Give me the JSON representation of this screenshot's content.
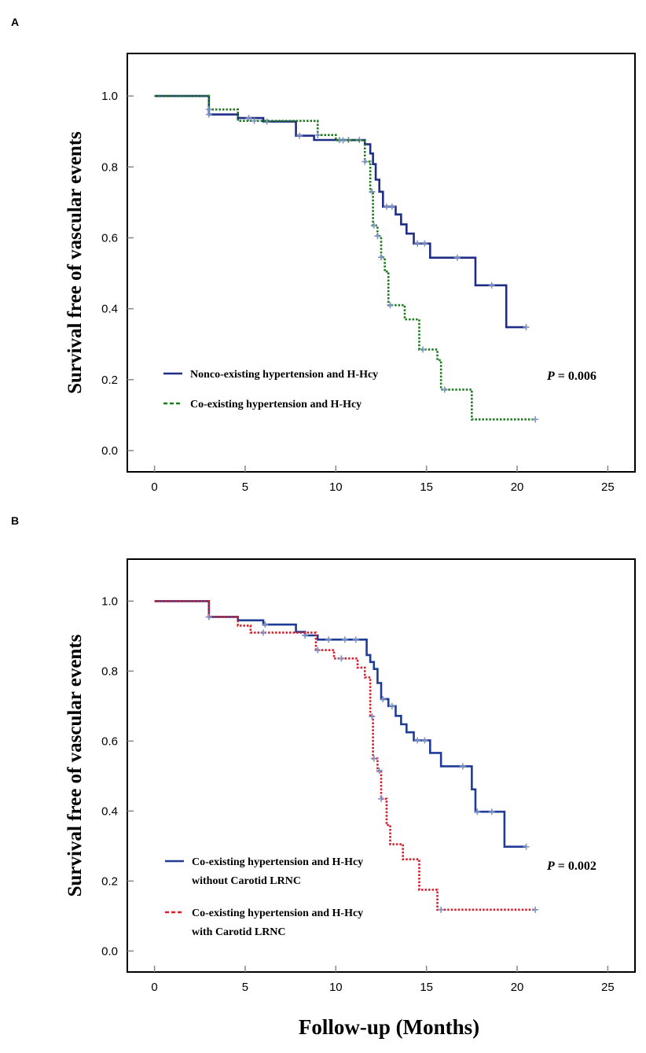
{
  "chart_data": [
    {
      "type": "line",
      "step": true,
      "panel_label": "A",
      "title": "",
      "xlabel": "Follow-up (Months)",
      "ylabel": "Survival free of vascular events",
      "xlim": [
        -1.5,
        26.5
      ],
      "ylim": [
        -0.06,
        1.12
      ],
      "xticks": [
        0,
        5,
        10,
        15,
        20,
        25
      ],
      "yticks": [
        0.0,
        0.2,
        0.4,
        0.6,
        0.8,
        1.0
      ],
      "ytick_labels": [
        "0.0",
        "0.2",
        "0.4",
        "0.6",
        "0.8",
        "1.0"
      ],
      "legend_position": "bottom-left",
      "annotation": {
        "prefix": "P",
        "text": " = 0.006"
      },
      "series": [
        {
          "name": "Nonco-existing hypertension and H-Hcy",
          "color": "#1f2d86",
          "style": "solid",
          "steps": [
            [
              0,
              1.0
            ],
            [
              3,
              0.948
            ],
            [
              4.6,
              0.938
            ],
            [
              6.0,
              0.928
            ],
            [
              7.8,
              0.888
            ],
            [
              8.8,
              0.876
            ],
            [
              10.0,
              0.876
            ],
            [
              11.6,
              0.864
            ],
            [
              11.9,
              0.838
            ],
            [
              12.05,
              0.808
            ],
            [
              12.2,
              0.764
            ],
            [
              12.4,
              0.73
            ],
            [
              12.6,
              0.688
            ],
            [
              13.3,
              0.666
            ],
            [
              13.6,
              0.638
            ],
            [
              13.9,
              0.612
            ],
            [
              14.3,
              0.584
            ],
            [
              15.2,
              0.544
            ],
            [
              17.7,
              0.466
            ],
            [
              19.4,
              0.348
            ],
            [
              20.5,
              0.348
            ]
          ],
          "censored": [
            [
              3.0,
              0.948
            ],
            [
              5.2,
              0.938
            ],
            [
              6.2,
              0.928
            ],
            [
              8.0,
              0.888
            ],
            [
              10.2,
              0.876
            ],
            [
              10.7,
              0.876
            ],
            [
              11.3,
              0.876
            ],
            [
              12.8,
              0.688
            ],
            [
              13.1,
              0.688
            ],
            [
              14.5,
              0.584
            ],
            [
              14.9,
              0.584
            ],
            [
              16.7,
              0.544
            ],
            [
              18.6,
              0.466
            ],
            [
              20.5,
              0.348
            ]
          ]
        },
        {
          "name": "Co-existing hypertension and H-Hcy",
          "color": "#1e7a1e",
          "style": "dotted",
          "steps": [
            [
              0,
              1.0
            ],
            [
              3,
              0.962
            ],
            [
              4.6,
              0.93
            ],
            [
              9.0,
              0.89
            ],
            [
              10.0,
              0.875
            ],
            [
              11.6,
              0.815
            ],
            [
              11.9,
              0.73
            ],
            [
              12.05,
              0.635
            ],
            [
              12.3,
              0.605
            ],
            [
              12.5,
              0.545
            ],
            [
              12.7,
              0.505
            ],
            [
              12.9,
              0.41
            ],
            [
              13.8,
              0.37
            ],
            [
              14.6,
              0.285
            ],
            [
              15.6,
              0.255
            ],
            [
              15.8,
              0.172
            ],
            [
              17.5,
              0.088
            ],
            [
              21.0,
              0.088
            ]
          ],
          "censored": [
            [
              3.0,
              0.962
            ],
            [
              5.5,
              0.93
            ],
            [
              9.0,
              0.89
            ],
            [
              10.4,
              0.875
            ],
            [
              11.6,
              0.815
            ],
            [
              12.0,
              0.73
            ],
            [
              12.1,
              0.635
            ],
            [
              12.3,
              0.605
            ],
            [
              12.5,
              0.545
            ],
            [
              13.0,
              0.41
            ],
            [
              14.8,
              0.285
            ],
            [
              16.0,
              0.172
            ],
            [
              21.0,
              0.088
            ]
          ]
        }
      ]
    },
    {
      "type": "line",
      "step": true,
      "panel_label": "B",
      "title": "",
      "xlabel": "Follow-up (Months)",
      "ylabel": "Survival free of vascular events",
      "xlim": [
        -1.5,
        26.5
      ],
      "ylim": [
        -0.06,
        1.12
      ],
      "xticks": [
        0,
        5,
        10,
        15,
        20,
        25
      ],
      "yticks": [
        0.0,
        0.2,
        0.4,
        0.6,
        0.8,
        1.0
      ],
      "ytick_labels": [
        "0.0",
        "0.2",
        "0.4",
        "0.6",
        "0.8",
        "1.0"
      ],
      "legend_position": "bottom-left",
      "annotation": {
        "prefix": "P",
        "text": " = 0.002"
      },
      "series": [
        {
          "name": "Co-existing hypertension and H-Hcy",
          "name_line2": "without Carotid LRNC",
          "color": "#1f3c96",
          "style": "solid",
          "steps": [
            [
              0,
              1.0
            ],
            [
              3,
              0.955
            ],
            [
              4.6,
              0.945
            ],
            [
              6.0,
              0.933
            ],
            [
              7.8,
              0.912
            ],
            [
              8.3,
              0.902
            ],
            [
              9.0,
              0.89
            ],
            [
              10.5,
              0.89
            ],
            [
              11.7,
              0.846
            ],
            [
              11.9,
              0.826
            ],
            [
              12.1,
              0.806
            ],
            [
              12.3,
              0.766
            ],
            [
              12.5,
              0.72
            ],
            [
              12.9,
              0.7
            ],
            [
              13.3,
              0.672
            ],
            [
              13.6,
              0.648
            ],
            [
              13.9,
              0.625
            ],
            [
              14.3,
              0.602
            ],
            [
              15.2,
              0.566
            ],
            [
              15.8,
              0.528
            ],
            [
              17.5,
              0.462
            ],
            [
              17.7,
              0.398
            ],
            [
              19.3,
              0.298
            ],
            [
              20.5,
              0.298
            ]
          ],
          "censored": [
            [
              3.0,
              0.955
            ],
            [
              6.1,
              0.933
            ],
            [
              8.3,
              0.902
            ],
            [
              9.6,
              0.89
            ],
            [
              10.5,
              0.89
            ],
            [
              11.1,
              0.89
            ],
            [
              12.6,
              0.72
            ],
            [
              13.1,
              0.7
            ],
            [
              14.5,
              0.602
            ],
            [
              14.9,
              0.602
            ],
            [
              17.0,
              0.528
            ],
            [
              17.8,
              0.398
            ],
            [
              18.6,
              0.398
            ],
            [
              20.5,
              0.298
            ]
          ]
        },
        {
          "name": "Co-existing hypertension and H-Hcy",
          "name_line2": "with Carotid LRNC",
          "color": "#d81e2c",
          "style": "dotted",
          "steps": [
            [
              0,
              1.0
            ],
            [
              3,
              0.955
            ],
            [
              4.6,
              0.93
            ],
            [
              5.3,
              0.91
            ],
            [
              8.9,
              0.86
            ],
            [
              9.9,
              0.836
            ],
            [
              11.2,
              0.81
            ],
            [
              11.6,
              0.782
            ],
            [
              11.9,
              0.67
            ],
            [
              12.05,
              0.55
            ],
            [
              12.3,
              0.515
            ],
            [
              12.5,
              0.435
            ],
            [
              12.8,
              0.36
            ],
            [
              13.0,
              0.305
            ],
            [
              13.7,
              0.262
            ],
            [
              14.6,
              0.175
            ],
            [
              15.6,
              0.118
            ],
            [
              21.0,
              0.118
            ]
          ],
          "censored": [
            [
              3.0,
              0.955
            ],
            [
              6.0,
              0.91
            ],
            [
              9.0,
              0.86
            ],
            [
              10.3,
              0.836
            ],
            [
              12.0,
              0.67
            ],
            [
              12.1,
              0.55
            ],
            [
              12.4,
              0.515
            ],
            [
              12.5,
              0.435
            ],
            [
              15.8,
              0.118
            ],
            [
              21.0,
              0.118
            ]
          ]
        }
      ]
    }
  ]
}
